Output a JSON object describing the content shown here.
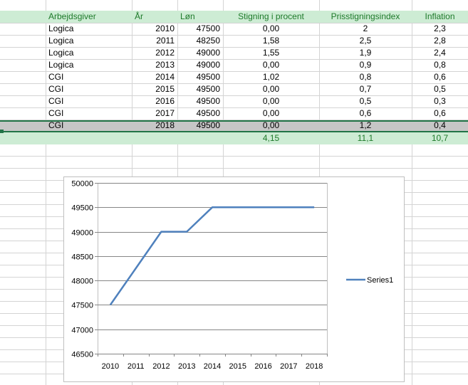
{
  "sheet": {
    "columns": {
      "employer": "Arbejdsgiver",
      "year": "År",
      "salary": "Løn",
      "raise_pct": "Stigning i procent",
      "price_index": "Prisstigningsindex",
      "inflation": "Inflation"
    },
    "rows": [
      {
        "employer": "Logica",
        "year": "2010",
        "salary": "47500",
        "raise_pct": "0,00",
        "price_index": "2",
        "inflation": "2,3"
      },
      {
        "employer": "Logica",
        "year": "2011",
        "salary": "48250",
        "raise_pct": "1,58",
        "price_index": "2,5",
        "inflation": "2,8"
      },
      {
        "employer": "Logica",
        "year": "2012",
        "salary": "49000",
        "raise_pct": "1,55",
        "price_index": "1,9",
        "inflation": "2,4"
      },
      {
        "employer": "Logica",
        "year": "2013",
        "salary": "49000",
        "raise_pct": "0,00",
        "price_index": "0,9",
        "inflation": "0,8"
      },
      {
        "employer": "CGI",
        "year": "2014",
        "salary": "49500",
        "raise_pct": "1,02",
        "price_index": "0,8",
        "inflation": "0,6"
      },
      {
        "employer": "CGI",
        "year": "2015",
        "salary": "49500",
        "raise_pct": "0,00",
        "price_index": "0,7",
        "inflation": "0,5"
      },
      {
        "employer": "CGI",
        "year": "2016",
        "salary": "49500",
        "raise_pct": "0,00",
        "price_index": "0,5",
        "inflation": "0,3"
      },
      {
        "employer": "CGI",
        "year": "2017",
        "salary": "49500",
        "raise_pct": "0,00",
        "price_index": "0,6",
        "inflation": "0,6"
      },
      {
        "employer": "CGI",
        "year": "2018",
        "salary": "49500",
        "raise_pct": "0,00",
        "price_index": "1,2",
        "inflation": "0,4"
      }
    ],
    "selected_row_index": 8,
    "totals": {
      "raise_pct": "4,15",
      "price_index": "11,1",
      "inflation": "10,7"
    }
  },
  "colors": {
    "header_text": "#1e7a2a",
    "header_band": "#cdecd4",
    "selection": "#217346",
    "series_line": "#4f81bd"
  },
  "chart_data": {
    "type": "line",
    "categories": [
      "2010",
      "2011",
      "2012",
      "2013",
      "2014",
      "2015",
      "2016",
      "2017",
      "2018"
    ],
    "series": [
      {
        "name": "Series1",
        "values": [
          47500,
          48250,
          49000,
          49000,
          49500,
          49500,
          49500,
          49500,
          49500
        ]
      }
    ],
    "y_ticks": [
      "50000",
      "49500",
      "49000",
      "48500",
      "48000",
      "47500",
      "47000",
      "46500"
    ],
    "ylim": [
      46500,
      50000
    ],
    "title": "",
    "xlabel": "",
    "ylabel": "",
    "grid": true,
    "legend": "right"
  }
}
